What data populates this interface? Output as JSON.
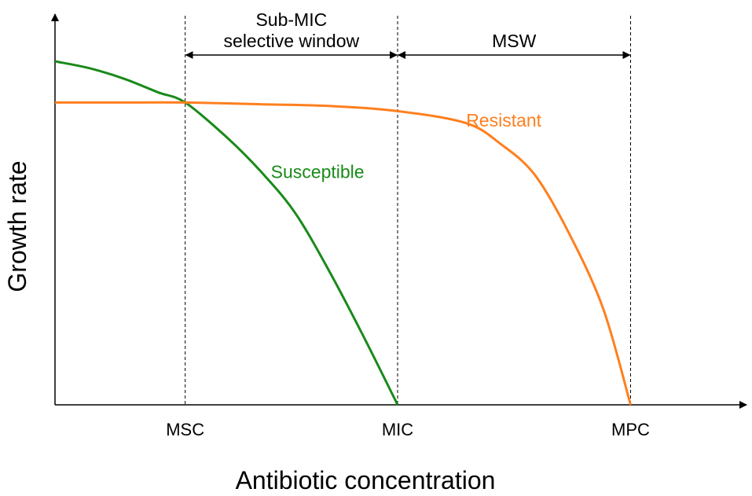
{
  "chart_data": {
    "type": "line",
    "title": "",
    "xlabel": "Antibiotic concentration",
    "ylabel": "Growth rate",
    "xlim": [
      0,
      1
    ],
    "ylim": [
      0,
      1
    ],
    "grid": false,
    "ticks": [
      {
        "label": "MSC",
        "x": 0.19
      },
      {
        "label": "MIC",
        "x": 0.5
      },
      {
        "label": "MPC",
        "x": 0.84
      }
    ],
    "regions": [
      {
        "label_lines": [
          "Sub-MIC",
          "selective window"
        ],
        "from": 0.19,
        "to": 0.5
      },
      {
        "label_lines": [
          "MSW"
        ],
        "from": 0.5,
        "to": 0.84
      }
    ],
    "series": [
      {
        "name": "Susceptible",
        "color": "#1a8a1a",
        "x": [
          0,
          0.05,
          0.1,
          0.15,
          0.19,
          0.25,
          0.3,
          0.35,
          0.4,
          0.45,
          0.5
        ],
        "y": [
          1.0,
          0.98,
          0.95,
          0.91,
          0.88,
          0.78,
          0.68,
          0.56,
          0.39,
          0.2,
          0.0
        ]
      },
      {
        "name": "Resistant",
        "color": "#ff7f1e",
        "x": [
          0,
          0.1,
          0.19,
          0.3,
          0.4,
          0.5,
          0.6,
          0.65,
          0.7,
          0.75,
          0.8,
          0.84
        ],
        "y": [
          0.88,
          0.88,
          0.88,
          0.875,
          0.87,
          0.855,
          0.82,
          0.76,
          0.67,
          0.5,
          0.28,
          0.0
        ]
      }
    ]
  }
}
